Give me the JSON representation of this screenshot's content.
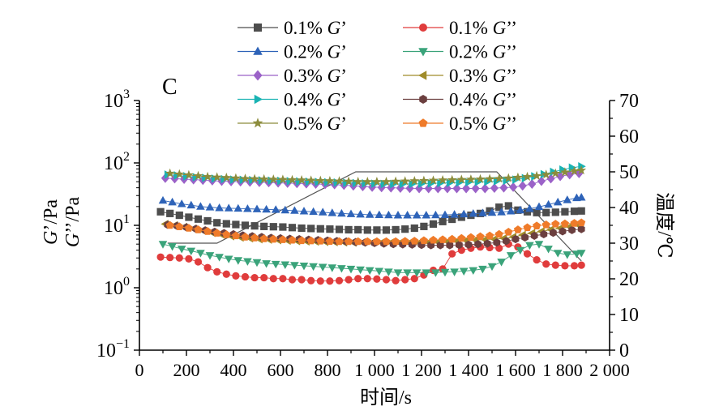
{
  "panel_label": "C",
  "chart_data": {
    "type": "scatter",
    "xlabel": "时间/s",
    "ylabel_parts": [
      "G",
      "’/Pa",
      "G",
      "’’/Pa"
    ],
    "y2label": "温度/℃",
    "x_ticks": [
      0,
      200,
      400,
      600,
      800,
      1000,
      1200,
      1400,
      1600,
      1800,
      2000
    ],
    "x_tick_labels": [
      "0",
      "200",
      "400",
      "600",
      "800",
      "1 000",
      "1 200",
      "1 400",
      "1 600",
      "1 800",
      "2 000"
    ],
    "xlim": [
      0,
      2000
    ],
    "y_scale": "log",
    "ylim": [
      0.1,
      1000
    ],
    "y_ticks": [
      {
        "value": 0.1,
        "base": "10",
        "exp": "−1"
      },
      {
        "value": 1,
        "base": "10",
        "exp": "0"
      },
      {
        "value": 10,
        "base": "10",
        "exp": "1"
      },
      {
        "value": 100,
        "base": "10",
        "exp": "2"
      },
      {
        "value": 1000,
        "base": "10",
        "exp": "3"
      }
    ],
    "y2lim": [
      0,
      70
    ],
    "y2_ticks": [
      0,
      10,
      20,
      30,
      40,
      50,
      60,
      70
    ],
    "legend": {
      "position": "top-center",
      "columns": 2
    },
    "temperature": {
      "color": "#555555",
      "x": [
        120,
        330,
        920,
        1520,
        1880
      ],
      "y": [
        30,
        30,
        50,
        50,
        25
      ]
    },
    "series": [
      {
        "name": "0.1% G’",
        "prefix": "0.1% ",
        "sym": "G",
        "suf": "’",
        "color": "#4d4d4d",
        "marker": "square",
        "x": [
          90,
          130,
          170,
          210,
          250,
          290,
          330,
          370,
          410,
          450,
          490,
          530,
          570,
          610,
          650,
          690,
          730,
          770,
          810,
          850,
          890,
          930,
          970,
          1010,
          1050,
          1090,
          1130,
          1170,
          1210,
          1250,
          1290,
          1330,
          1370,
          1410,
          1450,
          1490,
          1530,
          1570,
          1610,
          1650,
          1690,
          1730,
          1770,
          1810,
          1850,
          1880
        ],
        "y": [
          16.5,
          15.5,
          14.5,
          13.5,
          12.6,
          11.8,
          11,
          10.6,
          10.3,
          10,
          9.8,
          9.6,
          9.5,
          9.4,
          9.2,
          9,
          8.9,
          8.8,
          8.7,
          8.6,
          8.5,
          8.5,
          8.4,
          8.4,
          8.4,
          8.5,
          8.7,
          9,
          9.6,
          10.5,
          11.5,
          12.5,
          13.5,
          14.5,
          15.5,
          17,
          19.5,
          20.5,
          17.5,
          16.5,
          16,
          16,
          16.2,
          16.5,
          16.8,
          17
        ]
      },
      {
        "name": "0.2% G’",
        "prefix": "0.2% ",
        "sym": "G",
        "suf": "’",
        "color": "#2e63b8",
        "marker": "triangle-up",
        "x": [
          100,
          140,
          180,
          220,
          260,
          300,
          340,
          380,
          420,
          460,
          500,
          540,
          580,
          620,
          660,
          700,
          740,
          780,
          820,
          860,
          900,
          940,
          980,
          1020,
          1060,
          1100,
          1140,
          1180,
          1220,
          1260,
          1300,
          1340,
          1380,
          1420,
          1460,
          1500,
          1540,
          1580,
          1620,
          1660,
          1700,
          1740,
          1780,
          1820,
          1860,
          1880
        ],
        "y": [
          25,
          23.5,
          22,
          21,
          20,
          19.5,
          19,
          18.8,
          18.6,
          18.4,
          18.2,
          18,
          17.8,
          17.5,
          17.2,
          16.8,
          16.5,
          16.2,
          15.8,
          15.5,
          15.2,
          15,
          14.8,
          14.7,
          14.6,
          14.5,
          14.5,
          14.5,
          14.5,
          14.6,
          14.7,
          14.9,
          15.1,
          15.4,
          15.7,
          16,
          16.3,
          16.8,
          17.5,
          18.5,
          19.8,
          21.5,
          23.5,
          25.5,
          27.5,
          28
        ]
      },
      {
        "name": "0.3% G’",
        "prefix": "0.3% ",
        "sym": "G",
        "suf": "’",
        "color": "#9b62c8",
        "marker": "diamond",
        "x": [
          110,
          150,
          190,
          230,
          270,
          310,
          350,
          390,
          430,
          470,
          510,
          550,
          590,
          630,
          670,
          710,
          750,
          790,
          830,
          870,
          910,
          950,
          990,
          1030,
          1070,
          1110,
          1150,
          1190,
          1230,
          1270,
          1310,
          1350,
          1390,
          1430,
          1470,
          1510,
          1550,
          1590,
          1630,
          1670,
          1710,
          1750,
          1790,
          1830,
          1870
        ],
        "y": [
          57,
          56,
          55,
          54,
          53,
          52,
          51,
          50.5,
          50,
          49.5,
          49,
          48.5,
          48,
          47.5,
          47,
          46.5,
          46,
          45.5,
          45,
          44,
          43,
          42,
          41,
          40.5,
          40,
          39.5,
          39.2,
          39,
          39,
          39,
          39,
          39,
          39,
          39,
          39,
          39.5,
          40,
          41,
          43,
          46,
          51,
          56,
          61,
          65,
          68
        ]
      },
      {
        "name": "0.4% G’",
        "prefix": "0.4% ",
        "sym": "G",
        "suf": "’",
        "color": "#1ab3b3",
        "marker": "triangle-right",
        "x": [
          120,
          160,
          200,
          240,
          280,
          320,
          360,
          400,
          440,
          480,
          520,
          560,
          600,
          640,
          680,
          720,
          760,
          800,
          840,
          880,
          920,
          960,
          1000,
          1040,
          1080,
          1120,
          1160,
          1200,
          1240,
          1280,
          1320,
          1360,
          1400,
          1440,
          1480,
          1520,
          1560,
          1600,
          1640,
          1680,
          1720,
          1760,
          1800,
          1840,
          1880
        ],
        "y": [
          65,
          63,
          61,
          59,
          57.5,
          56,
          55,
          54,
          53.5,
          53,
          52.5,
          52,
          51.5,
          51,
          50.5,
          50,
          49.5,
          49,
          48.5,
          48,
          47.5,
          47,
          46.5,
          46,
          46,
          46,
          46,
          46.5,
          47,
          47.5,
          48,
          48.5,
          49,
          49.5,
          50,
          51,
          52,
          54,
          57,
          61,
          66,
          72,
          78,
          84,
          88
        ]
      },
      {
        "name": "0.5% G’",
        "prefix": "0.5% ",
        "sym": "G",
        "suf": "’",
        "color": "#8c8c3c",
        "marker": "star",
        "x": [
          130,
          170,
          210,
          250,
          290,
          330,
          370,
          410,
          450,
          490,
          530,
          570,
          610,
          650,
          690,
          730,
          770,
          810,
          850,
          890,
          930,
          970,
          1010,
          1050,
          1090,
          1130,
          1170,
          1210,
          1250,
          1290,
          1330,
          1370,
          1410,
          1450,
          1490,
          1530,
          1570,
          1610,
          1650,
          1690,
          1730,
          1770,
          1810,
          1850,
          1880
        ],
        "y": [
          68,
          66,
          64,
          62,
          60,
          59,
          58,
          57,
          56,
          55.5,
          55,
          54.5,
          54,
          53.5,
          53,
          52.5,
          52,
          51.5,
          51,
          50.5,
          50,
          50,
          50,
          50,
          50.5,
          51,
          51.5,
          52,
          52.5,
          53,
          53.5,
          54,
          54.5,
          55,
          55.5,
          56,
          57,
          58.5,
          60,
          62,
          65,
          68,
          71,
          74,
          76
        ]
      },
      {
        "name": "0.1% G’’",
        "prefix": "0.1% ",
        "sym": "G",
        "suf": "’’",
        "color": "#e03c3c",
        "marker": "circle",
        "x": [
          90,
          130,
          170,
          210,
          250,
          290,
          330,
          370,
          410,
          450,
          490,
          530,
          570,
          610,
          650,
          690,
          730,
          770,
          810,
          850,
          890,
          930,
          970,
          1010,
          1050,
          1090,
          1130,
          1170,
          1210,
          1250,
          1290,
          1330,
          1370,
          1410,
          1450,
          1490,
          1530,
          1570,
          1610,
          1650,
          1690,
          1730,
          1770,
          1810,
          1850,
          1880
        ],
        "y": [
          3.1,
          3.05,
          3,
          2.9,
          2.6,
          2.1,
          1.8,
          1.65,
          1.55,
          1.5,
          1.45,
          1.45,
          1.4,
          1.4,
          1.35,
          1.35,
          1.3,
          1.28,
          1.28,
          1.3,
          1.35,
          1.4,
          1.4,
          1.38,
          1.35,
          1.3,
          1.35,
          1.4,
          1.6,
          1.9,
          2,
          3.5,
          4,
          4.3,
          4.5,
          4.4,
          4.3,
          5,
          4.5,
          3.5,
          2.8,
          2.4,
          2.3,
          2.25,
          2.25,
          2.3
        ]
      },
      {
        "name": "0.2% G’’",
        "prefix": "0.2% ",
        "sym": "G",
        "suf": "’’",
        "color": "#3aa37a",
        "marker": "triangle-down",
        "x": [
          100,
          140,
          180,
          220,
          260,
          300,
          340,
          380,
          420,
          460,
          500,
          540,
          580,
          620,
          660,
          700,
          740,
          780,
          820,
          860,
          900,
          940,
          980,
          1020,
          1060,
          1100,
          1140,
          1180,
          1220,
          1260,
          1300,
          1340,
          1380,
          1420,
          1460,
          1500,
          1540,
          1580,
          1620,
          1660,
          1700,
          1740,
          1780,
          1820,
          1860,
          1880
        ],
        "y": [
          5,
          4.6,
          4.2,
          3.9,
          3.6,
          3.3,
          3.1,
          2.9,
          2.75,
          2.65,
          2.55,
          2.45,
          2.4,
          2.35,
          2.3,
          2.25,
          2.2,
          2.15,
          2.1,
          2.05,
          2,
          1.95,
          1.9,
          1.85,
          1.8,
          1.75,
          1.75,
          1.75,
          1.75,
          1.75,
          1.78,
          1.8,
          1.85,
          1.9,
          2,
          2.2,
          2.6,
          3.3,
          4,
          4.8,
          5,
          4.2,
          3.6,
          3.4,
          3.5,
          3.6
        ]
      },
      {
        "name": "0.3% G’’",
        "prefix": "0.3% ",
        "sym": "G",
        "suf": "’’",
        "color": "#a08c2a",
        "marker": "triangle-left",
        "x": [
          110,
          150,
          190,
          230,
          270,
          310,
          350,
          390,
          430,
          470,
          510,
          550,
          590,
          630,
          670,
          710,
          750,
          790,
          830,
          870,
          910,
          950,
          990,
          1030,
          1070,
          1110,
          1150,
          1190,
          1230,
          1270,
          1310,
          1350,
          1390,
          1430,
          1470,
          1510,
          1550,
          1590,
          1630,
          1670,
          1710,
          1750,
          1790,
          1830,
          1870
        ],
        "y": [
          10.5,
          10,
          9.4,
          8.8,
          8.2,
          7.6,
          7.1,
          6.7,
          6.4,
          6.2,
          6,
          5.9,
          5.8,
          5.7,
          5.6,
          5.55,
          5.5,
          5.45,
          5.4,
          5.35,
          5.3,
          5.3,
          5.3,
          5.3,
          5.3,
          5.3,
          5.3,
          5.3,
          5.35,
          5.4,
          5.5,
          5.6,
          5.7,
          5.8,
          5.9,
          6,
          6.2,
          6.5,
          7,
          7.5,
          8,
          8.5,
          9,
          9.5,
          10
        ]
      },
      {
        "name": "0.4% G’’",
        "prefix": "0.4% ",
        "sym": "G",
        "suf": "’’",
        "color": "#6b3f3f",
        "marker": "hexagon",
        "x": [
          120,
          160,
          200,
          240,
          280,
          320,
          360,
          400,
          440,
          480,
          520,
          560,
          600,
          640,
          680,
          720,
          760,
          800,
          840,
          880,
          920,
          960,
          1000,
          1040,
          1080,
          1120,
          1160,
          1200,
          1240,
          1280,
          1320,
          1360,
          1400,
          1440,
          1480,
          1520,
          1560,
          1600,
          1640,
          1680,
          1720,
          1760,
          1800,
          1840,
          1880
        ],
        "y": [
          10.2,
          9.8,
          9.3,
          8.8,
          8.3,
          7.9,
          7.5,
          7.2,
          6.9,
          6.7,
          6.5,
          6.3,
          6.2,
          6.1,
          6,
          5.9,
          5.8,
          5.7,
          5.6,
          5.5,
          5.4,
          5.3,
          5.2,
          5.1,
          5,
          4.95,
          4.9,
          4.85,
          4.8,
          4.8,
          4.8,
          4.85,
          4.9,
          5,
          5.1,
          5.3,
          5.6,
          6,
          6.4,
          6.8,
          7.2,
          7.6,
          8,
          8.4,
          8.7
        ]
      },
      {
        "name": "0.5% G’’",
        "prefix": "0.5% ",
        "sym": "G",
        "suf": "’’",
        "color": "#ef7b2a",
        "marker": "pentagon",
        "x": [
          130,
          170,
          210,
          250,
          290,
          330,
          370,
          410,
          450,
          490,
          530,
          570,
          610,
          650,
          690,
          730,
          770,
          810,
          850,
          890,
          930,
          970,
          1010,
          1050,
          1090,
          1130,
          1170,
          1210,
          1250,
          1290,
          1330,
          1370,
          1410,
          1450,
          1490,
          1530,
          1570,
          1610,
          1650,
          1690,
          1730,
          1770,
          1810,
          1850,
          1880
        ],
        "y": [
          10,
          9.5,
          9,
          8.5,
          8,
          7.5,
          7.1,
          6.8,
          6.5,
          6.3,
          6.1,
          6,
          5.9,
          5.8,
          5.7,
          5.65,
          5.6,
          5.55,
          5.5,
          5.5,
          5.5,
          5.5,
          5.5,
          5.5,
          5.5,
          5.55,
          5.6,
          5.7,
          5.8,
          5.9,
          6,
          6.2,
          6.4,
          6.6,
          6.8,
          7.2,
          7.8,
          8.5,
          9.2,
          9.8,
          10.2,
          10.5,
          10.6,
          10.8,
          11
        ]
      }
    ]
  }
}
